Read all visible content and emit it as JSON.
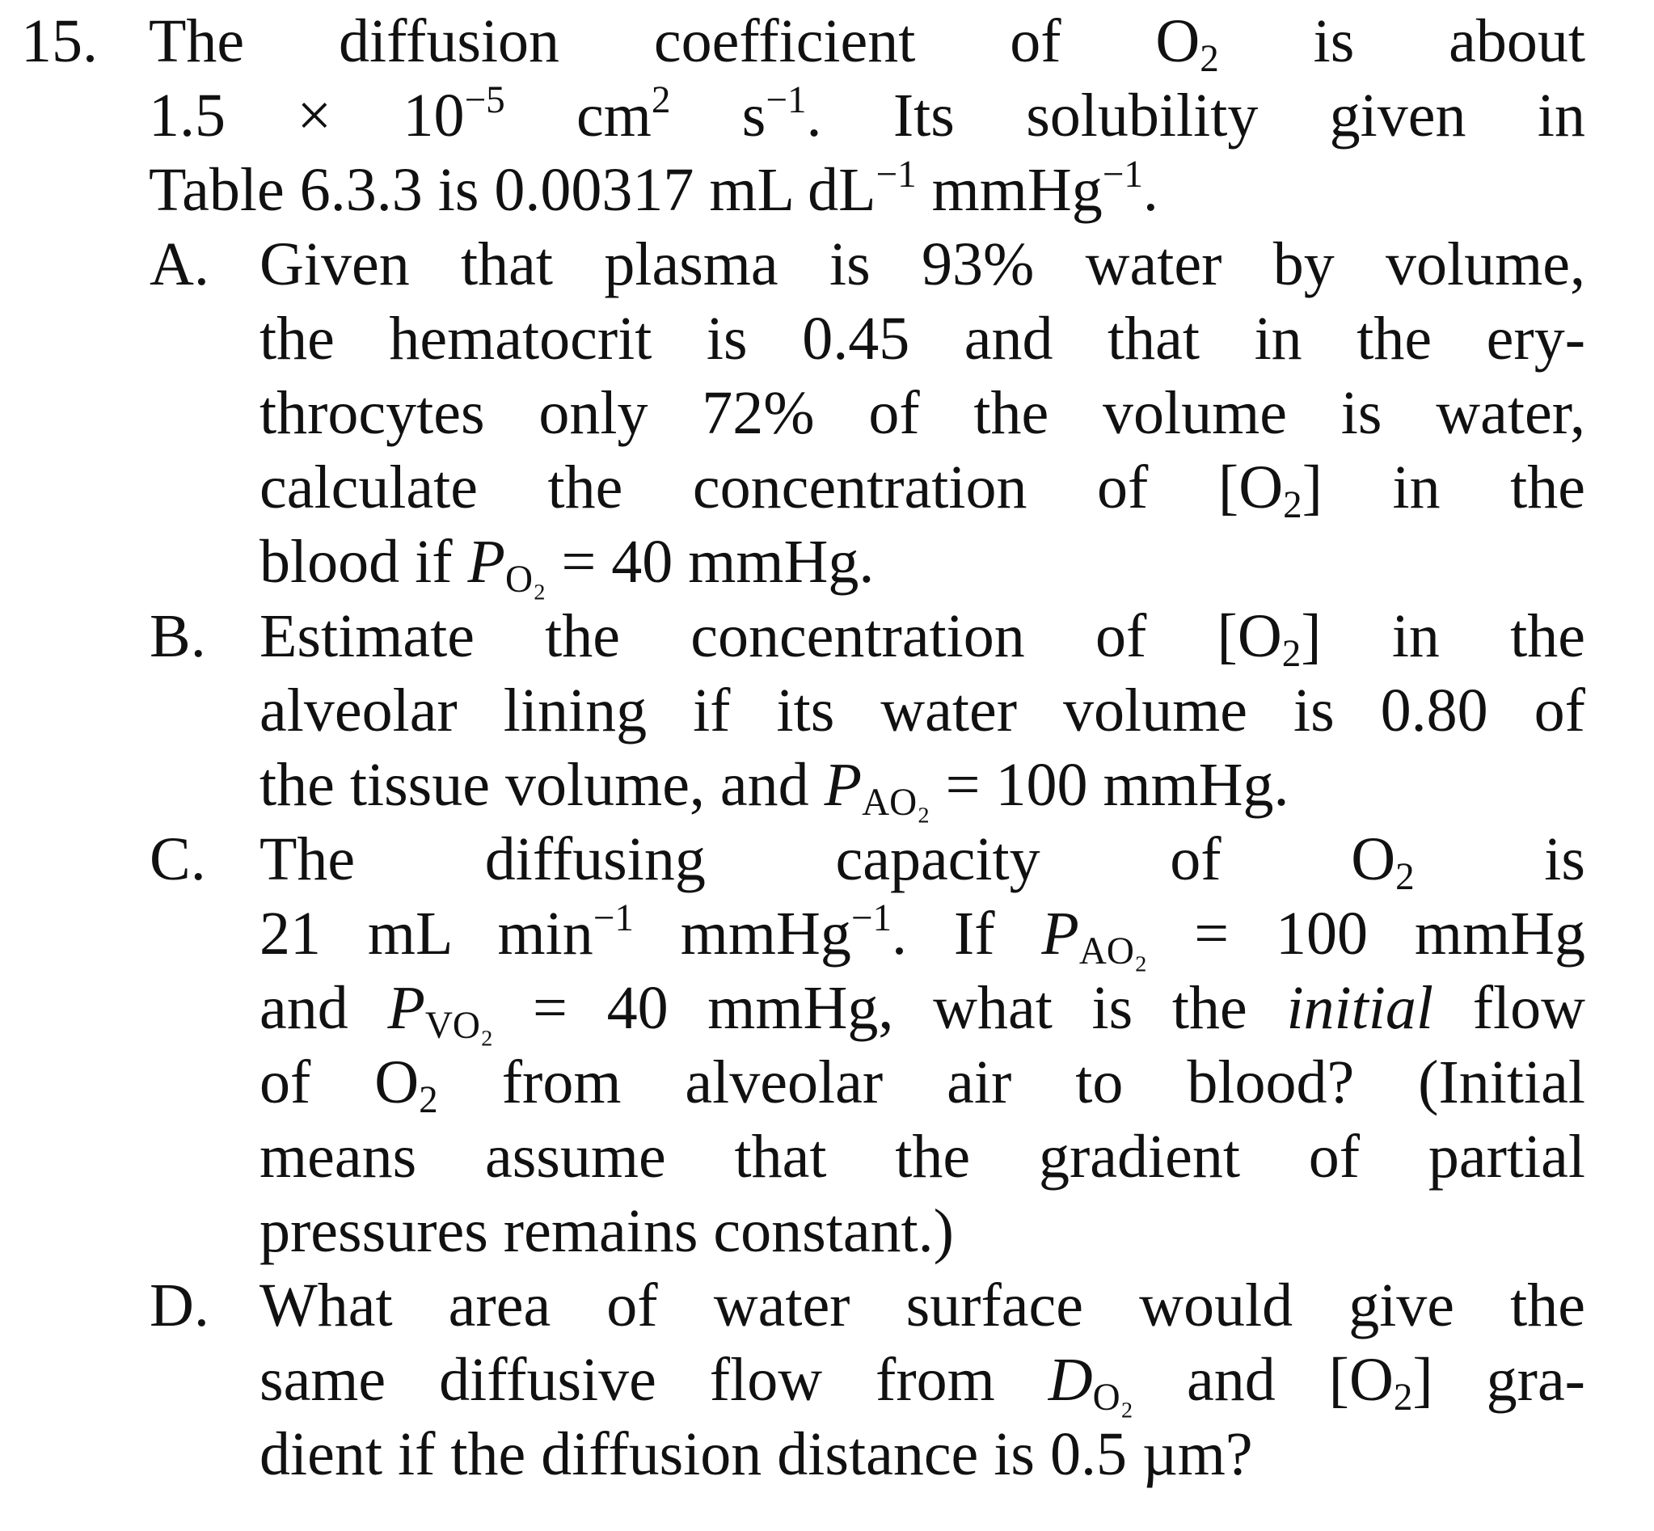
{
  "question": {
    "number": "15.",
    "stem": [
      [
        {
          "t": "The diffusion coefficient of O"
        },
        {
          "sub": "2"
        },
        {
          "t": " is about"
        }
      ],
      [
        {
          "t": "1.5 × 10"
        },
        {
          "sup": "−5"
        },
        {
          "t": " cm"
        },
        {
          "sup": "2"
        },
        {
          "t": " s"
        },
        {
          "sup": "−1"
        },
        {
          "t": ". Its solubility given in"
        }
      ],
      [
        {
          "t": "Table 6.3.3 is 0.00317 mL dL"
        },
        {
          "sup": "−1"
        },
        {
          "t": " mmHg"
        },
        {
          "sup": "−1"
        },
        {
          "t": "."
        }
      ]
    ],
    "parts": [
      {
        "label": "A.",
        "lines": [
          [
            {
              "t": "Given that plasma is 93% water by volume,"
            }
          ],
          [
            {
              "t": "the hematocrit is 0.45 and that in the ery-"
            }
          ],
          [
            {
              "t": "throcytes only 72% of the volume is water,"
            }
          ],
          [
            {
              "t": "calculate the concentration of [O"
            },
            {
              "sub": "2"
            },
            {
              "t": "] in the"
            }
          ],
          [
            {
              "t": "blood if "
            },
            {
              "i": "P"
            },
            {
              "sub": "O₂"
            },
            {
              "t": " = 40 mmHg."
            }
          ]
        ]
      },
      {
        "label": "B.",
        "lines": [
          [
            {
              "t": "Estimate the concentration of [O"
            },
            {
              "sub": "2"
            },
            {
              "t": "] in the"
            }
          ],
          [
            {
              "t": "alveolar lining if its water volume is 0.80 of"
            }
          ],
          [
            {
              "t": "the tissue volume, and "
            },
            {
              "i": "P"
            },
            {
              "sub": "AO₂"
            },
            {
              "t": " = 100 mmHg."
            }
          ]
        ]
      },
      {
        "label": "C.",
        "lines": [
          [
            {
              "t": "The diffusing capacity of O"
            },
            {
              "sub": "2"
            },
            {
              "t": " is"
            }
          ],
          [
            {
              "t": "21 mL min"
            },
            {
              "sup": "−1"
            },
            {
              "t": " mmHg"
            },
            {
              "sup": "−1"
            },
            {
              "t": ". If "
            },
            {
              "i": "P"
            },
            {
              "sub": "AO₂"
            },
            {
              "t": " = 100 mmHg"
            }
          ],
          [
            {
              "t": "and "
            },
            {
              "i": "P"
            },
            {
              "sub": "VO₂"
            },
            {
              "t": " = 40 mmHg, what is the "
            },
            {
              "i": "initial"
            },
            {
              "t": " flow"
            }
          ],
          [
            {
              "t": "of O"
            },
            {
              "sub": "2"
            },
            {
              "t": " from alveolar air to blood? (Initial"
            }
          ],
          [
            {
              "t": "means assume that the gradient of partial"
            }
          ],
          [
            {
              "t": "pressures remains constant.)"
            }
          ]
        ]
      },
      {
        "label": "D.",
        "lines": [
          [
            {
              "t": "What area of water surface would give the"
            }
          ],
          [
            {
              "t": "same diffusive flow from "
            },
            {
              "i": "D"
            },
            {
              "sub": "O₂"
            },
            {
              "t": " and [O"
            },
            {
              "sub": "2"
            },
            {
              "t": "] gra-"
            }
          ],
          [
            {
              "t": "dient if the diffusion distance is 0.5 µm?"
            }
          ]
        ]
      }
    ]
  }
}
